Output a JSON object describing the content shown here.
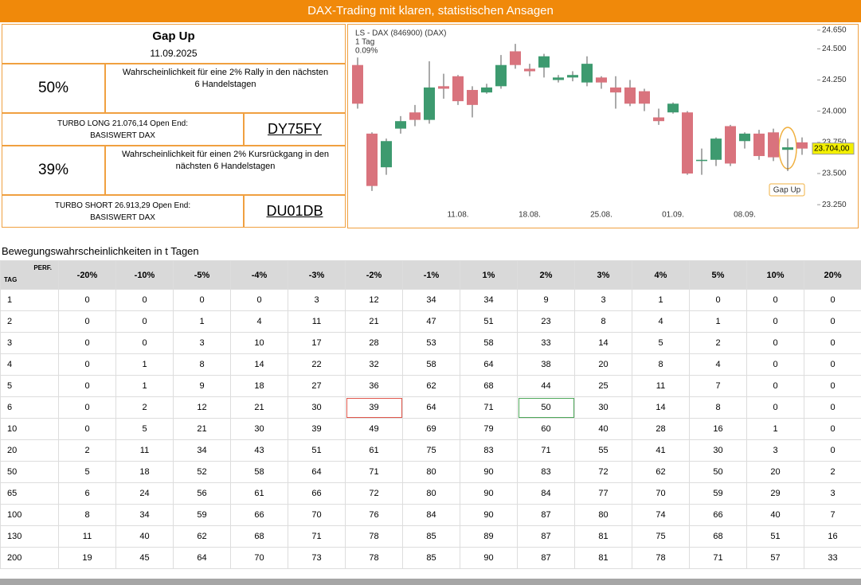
{
  "header": {
    "title": "DAX-Trading mit klaren, statistischen Ansagen"
  },
  "signal": {
    "title": "Gap Up",
    "date": "11.09.2025"
  },
  "boxes": [
    {
      "probability": "50%",
      "text": [
        "Wahrscheinlichkeit für eine 2% Rally in den nächsten",
        "6 Handelstagen"
      ],
      "product": [
        "TURBO LONG 21.076,14 Open End:",
        "BASISWERT DAX"
      ],
      "code": "DY75FY"
    },
    {
      "probability": "39%",
      "text": [
        "Wahrscheinlichkeit für einen 2% Kursrückgang in den",
        "nächsten 6 Handelstagen"
      ],
      "product": [
        "TURBO SHORT 26.913,29 Open End:",
        "BASISWERT DAX"
      ],
      "code": "DU01DB"
    }
  ],
  "chart_data": {
    "type": "candlestick",
    "title": "LS - DAX (846900) (DAX)",
    "interval": "1 Tag",
    "change": "0.09%",
    "annotation": "Gap Up",
    "last_price_label": "23.704,00",
    "up_color": "#3d9a6f",
    "down_color": "#d9737d",
    "categories": [
      null,
      null,
      null,
      null,
      null,
      null,
      null,
      "11.08.",
      null,
      null,
      null,
      null,
      "18.08.",
      null,
      null,
      null,
      null,
      "25.08.",
      null,
      null,
      null,
      null,
      "01.09.",
      null,
      null,
      null,
      null,
      "08.09.",
      null,
      null,
      null,
      null
    ],
    "open": [
      24370,
      23820,
      23550,
      23860,
      23990,
      23930,
      24200,
      24280,
      24170,
      24150,
      24200,
      24480,
      24340,
      24350,
      24250,
      24270,
      24230,
      24270,
      24190,
      24190,
      24160,
      23950,
      23990,
      23990,
      23600,
      23610,
      23880,
      23760,
      23820,
      23830,
      23690,
      23750
    ],
    "high": [
      24430,
      23830,
      23780,
      23960,
      24050,
      24400,
      24300,
      24290,
      24200,
      24220,
      24450,
      24540,
      24380,
      24460,
      24290,
      24320,
      24440,
      24280,
      24280,
      24250,
      24180,
      24020,
      24070,
      24000,
      23700,
      23790,
      23890,
      23830,
      23850,
      23860,
      23780,
      23790
    ],
    "low": [
      24020,
      23360,
      23490,
      23820,
      23880,
      23900,
      24100,
      24050,
      23950,
      24140,
      24180,
      24340,
      24280,
      24270,
      24230,
      24240,
      24200,
      24180,
      24020,
      24040,
      24000,
      23890,
      23980,
      23490,
      23490,
      23560,
      23560,
      23700,
      23610,
      23600,
      23520,
      23650
    ],
    "close": [
      24060,
      23400,
      23760,
      23920,
      23930,
      24190,
      24180,
      24080,
      24050,
      24190,
      24370,
      24370,
      24320,
      24440,
      24270,
      24290,
      24380,
      24230,
      24150,
      24060,
      24060,
      23920,
      24060,
      23500,
      23610,
      23780,
      23580,
      23820,
      23640,
      23630,
      23710,
      23700
    ],
    "ylim": [
      23200,
      24700
    ],
    "yticks": [
      {
        "value": 23250,
        "label": "23.250"
      },
      {
        "value": 23500,
        "label": "23.500"
      },
      {
        "value": 23750,
        "label": "23.750"
      },
      {
        "value": 24000,
        "label": "24.000"
      },
      {
        "value": 24250,
        "label": "24.250"
      },
      {
        "value": 24500,
        "label": "24.500"
      },
      {
        "value": 24650,
        "label": "24.650"
      }
    ]
  },
  "table": {
    "caption": "Bewegungswahrscheinlichkeiten in t Tagen",
    "corner_top": "PERF.",
    "corner_bottom": "TAG",
    "columns": [
      "-20%",
      "-10%",
      "-5%",
      "-4%",
      "-3%",
      "-2%",
      "-1%",
      "1%",
      "2%",
      "3%",
      "4%",
      "5%",
      "10%",
      "20%"
    ],
    "rows": [
      {
        "day": 1,
        "values": [
          0,
          0,
          0,
          0,
          3,
          12,
          34,
          34,
          9,
          3,
          1,
          0,
          0,
          0
        ]
      },
      {
        "day": 2,
        "values": [
          0,
          0,
          1,
          4,
          11,
          21,
          47,
          51,
          23,
          8,
          4,
          1,
          0,
          0
        ]
      },
      {
        "day": 3,
        "values": [
          0,
          0,
          3,
          10,
          17,
          28,
          53,
          58,
          33,
          14,
          5,
          2,
          0,
          0
        ]
      },
      {
        "day": 4,
        "values": [
          0,
          1,
          8,
          14,
          22,
          32,
          58,
          64,
          38,
          20,
          8,
          4,
          0,
          0
        ]
      },
      {
        "day": 5,
        "values": [
          0,
          1,
          9,
          18,
          27,
          36,
          62,
          68,
          44,
          25,
          11,
          7,
          0,
          0
        ]
      },
      {
        "day": 6,
        "values": [
          0,
          2,
          12,
          21,
          30,
          39,
          64,
          71,
          50,
          30,
          14,
          8,
          0,
          0
        ]
      },
      {
        "day": 10,
        "values": [
          0,
          5,
          21,
          30,
          39,
          49,
          69,
          79,
          60,
          40,
          28,
          16,
          1,
          0
        ]
      },
      {
        "day": 20,
        "values": [
          2,
          11,
          34,
          43,
          51,
          61,
          75,
          83,
          71,
          55,
          41,
          30,
          3,
          0
        ]
      },
      {
        "day": 50,
        "values": [
          5,
          18,
          52,
          58,
          64,
          71,
          80,
          90,
          83,
          72,
          62,
          50,
          20,
          2
        ]
      },
      {
        "day": 65,
        "values": [
          6,
          24,
          56,
          61,
          66,
          72,
          80,
          90,
          84,
          77,
          70,
          59,
          29,
          3
        ]
      },
      {
        "day": 100,
        "values": [
          8,
          34,
          59,
          66,
          70,
          76,
          84,
          90,
          87,
          80,
          74,
          66,
          40,
          7
        ]
      },
      {
        "day": 130,
        "values": [
          11,
          40,
          62,
          68,
          71,
          78,
          85,
          89,
          87,
          81,
          75,
          68,
          51,
          16
        ]
      },
      {
        "day": 200,
        "values": [
          19,
          45,
          64,
          70,
          73,
          78,
          85,
          90,
          87,
          81,
          78,
          71,
          57,
          33
        ]
      }
    ],
    "highlights": [
      {
        "row": 5,
        "column": 5,
        "color": "#e0574c"
      },
      {
        "row": 5,
        "column": 8,
        "color": "#4fa85a"
      }
    ]
  }
}
